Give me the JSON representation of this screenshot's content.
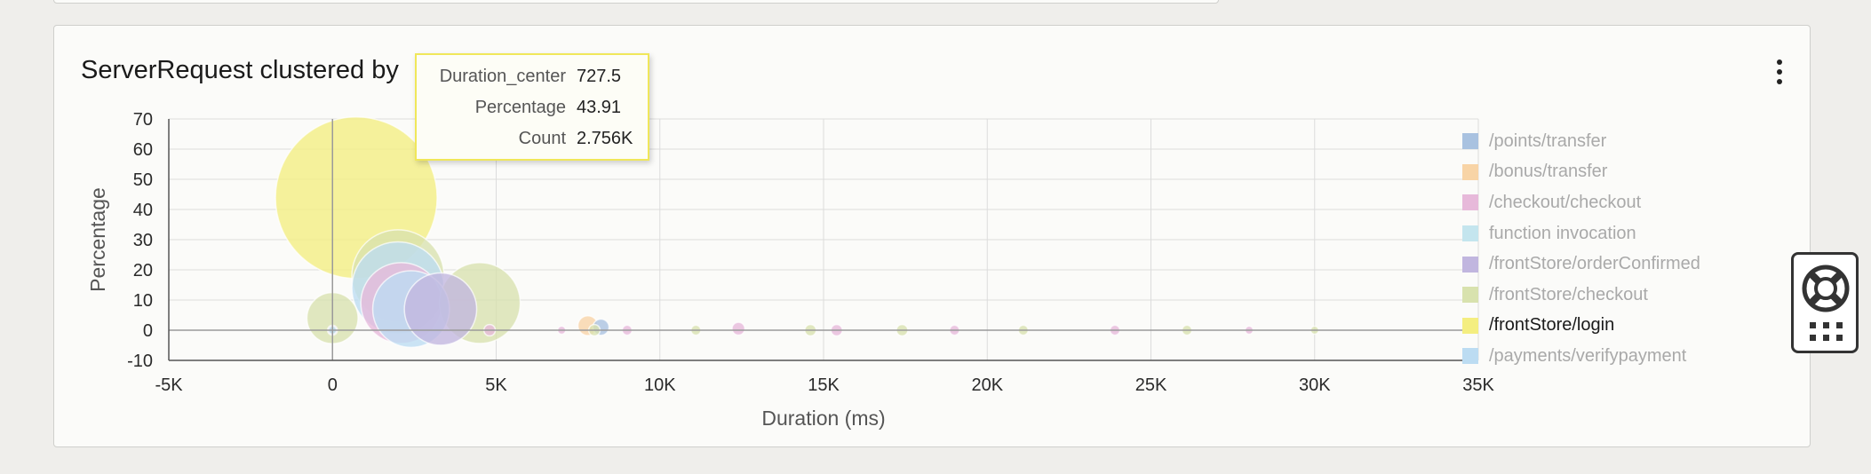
{
  "panel": {
    "title": "ServerRequest clustered by"
  },
  "tooltip": {
    "rows": [
      {
        "key": "Duration_center",
        "value": "727.5"
      },
      {
        "key": "Percentage",
        "value": "43.91"
      },
      {
        "key": "Count",
        "value": "2.756K"
      }
    ]
  },
  "chart_data": {
    "type": "scatter",
    "subtype": "bubble",
    "xlabel": "Duration (ms)",
    "ylabel": "Percentage",
    "xlim": [
      -5000,
      35000
    ],
    "ylim": [
      -10,
      70
    ],
    "x_ticks": [
      "-5K",
      "0",
      "5K",
      "10K",
      "15K",
      "20K",
      "25K",
      "30K",
      "35K"
    ],
    "y_ticks": [
      "70",
      "60",
      "50",
      "40",
      "30",
      "20",
      "10",
      "0",
      "-10"
    ],
    "grid": true,
    "legend_position": "right",
    "series": [
      {
        "name": "/points/transfer",
        "color": "#a9c2e0",
        "points": [
          {
            "x": 8200,
            "y": 1,
            "size": 0.4
          }
        ]
      },
      {
        "name": "/bonus/transfer",
        "color": "#f8d4a6",
        "points": [
          {
            "x": 7800,
            "y": 1.5,
            "size": 0.6
          }
        ]
      },
      {
        "name": "/checkout/checkout",
        "color": "#e7b9da",
        "points": [
          {
            "x": 2100,
            "y": 9,
            "size": 10
          },
          {
            "x": 4800,
            "y": 0,
            "size": 0.2
          },
          {
            "x": 7000,
            "y": 0,
            "size": 0.1
          },
          {
            "x": 9000,
            "y": 0,
            "size": 0.15
          },
          {
            "x": 12400,
            "y": 0.5,
            "size": 0.25
          },
          {
            "x": 15400,
            "y": 0,
            "size": 0.2
          },
          {
            "x": 19000,
            "y": 0,
            "size": 0.15
          },
          {
            "x": 23900,
            "y": 0,
            "size": 0.15
          },
          {
            "x": 28000,
            "y": 0,
            "size": 0.1
          }
        ]
      },
      {
        "name": "function invocation",
        "color": "#c4e5ee",
        "points": [
          {
            "x": 0,
            "y": 0,
            "size": 0.1
          }
        ]
      },
      {
        "name": "/frontStore/orderConfirmed",
        "color": "#c1b6df",
        "points": [
          {
            "x": 3300,
            "y": 7,
            "size": 8
          },
          {
            "x": 0,
            "y": 0,
            "size": 0.15
          }
        ]
      },
      {
        "name": "/frontStore/checkout",
        "color": "#d8e2ae",
        "points": [
          {
            "x": 0,
            "y": 4,
            "size": 4
          },
          {
            "x": 2000,
            "y": 18,
            "size": 13
          },
          {
            "x": 4500,
            "y": 9,
            "size": 10
          },
          {
            "x": 8000,
            "y": 0,
            "size": 0.2
          },
          {
            "x": 11100,
            "y": 0,
            "size": 0.15
          },
          {
            "x": 14600,
            "y": 0,
            "size": 0.2
          },
          {
            "x": 17400,
            "y": 0,
            "size": 0.2
          },
          {
            "x": 21100,
            "y": 0,
            "size": 0.15
          },
          {
            "x": 26100,
            "y": 0,
            "size": 0.15
          },
          {
            "x": 30000,
            "y": 0,
            "size": 0.1
          }
        ]
      },
      {
        "name": "/frontStore/login",
        "color": "#f4ee80",
        "points": [
          {
            "x": 727.5,
            "y": 43.91,
            "size": 40
          }
        ]
      },
      {
        "name": "/payments/verifypayment",
        "color": "#bcdcf2",
        "points": [
          {
            "x": 2000,
            "y": 14,
            "size": 13
          },
          {
            "x": 2400,
            "y": 7,
            "size": 9
          }
        ]
      }
    ]
  },
  "legend": {
    "active_index": 6
  },
  "help_widget": {
    "lifebuoy_icon": "lifebuoy-icon",
    "grid_icon": "apps-grid-icon"
  }
}
